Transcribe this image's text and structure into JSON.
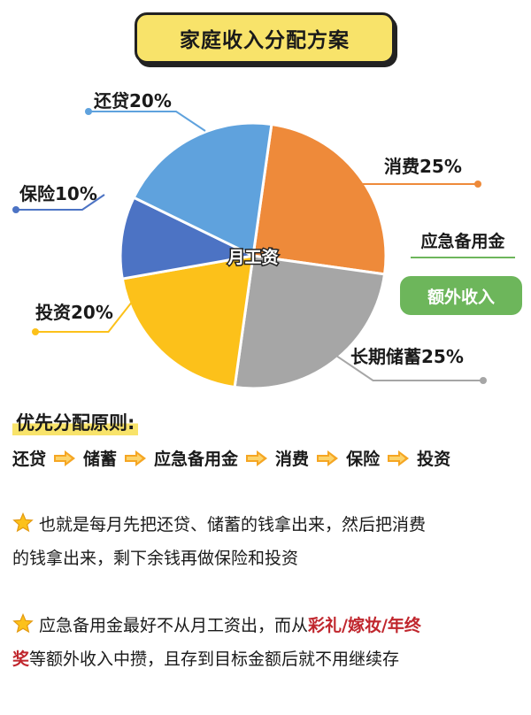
{
  "title": "家庭收入分配方案",
  "chart_data": {
    "type": "pie",
    "center_label": "月工资",
    "slices": [
      {
        "label": "消费25%",
        "name": "消费",
        "value": 25,
        "color": "#ee8a3a"
      },
      {
        "label": "长期储蓄25%",
        "name": "长期储蓄",
        "value": 25,
        "color": "#a6a6a6"
      },
      {
        "label": "投资20%",
        "name": "投资",
        "value": 20,
        "color": "#fcc11a"
      },
      {
        "label": "保险10%",
        "name": "保险",
        "value": 10,
        "color": "#4c73c4"
      },
      {
        "label": "还贷20%",
        "name": "还贷",
        "value": 20,
        "color": "#5fa2dd"
      }
    ]
  },
  "side": {
    "emergency_label": "应急备用金",
    "extra_income": "额外收入"
  },
  "priority": {
    "title": "优先分配原则:",
    "steps": [
      "还贷",
      "储蓄",
      "应急备用金",
      "消费",
      "保险",
      "投资"
    ]
  },
  "notes": {
    "note1_line1": "也就是每月先把还贷、储蓄的钱拿出来，然后把消费",
    "note1_line2": "的钱拿出来，剩下余钱再做保险和投资",
    "note2_line1_a": "应急备用金最好不从月工资出，而从",
    "note2_line1_b": "彩礼/嫁妆/年终",
    "note2_line2_a": "奖",
    "note2_line2_b": "等额外收入中攒，且存到目标金额后就不用继续存"
  },
  "colors": {
    "title_bg": "#f8e36a",
    "green": "#6db65b",
    "arrow": "#f5a623",
    "highlight": "#c0262d"
  }
}
